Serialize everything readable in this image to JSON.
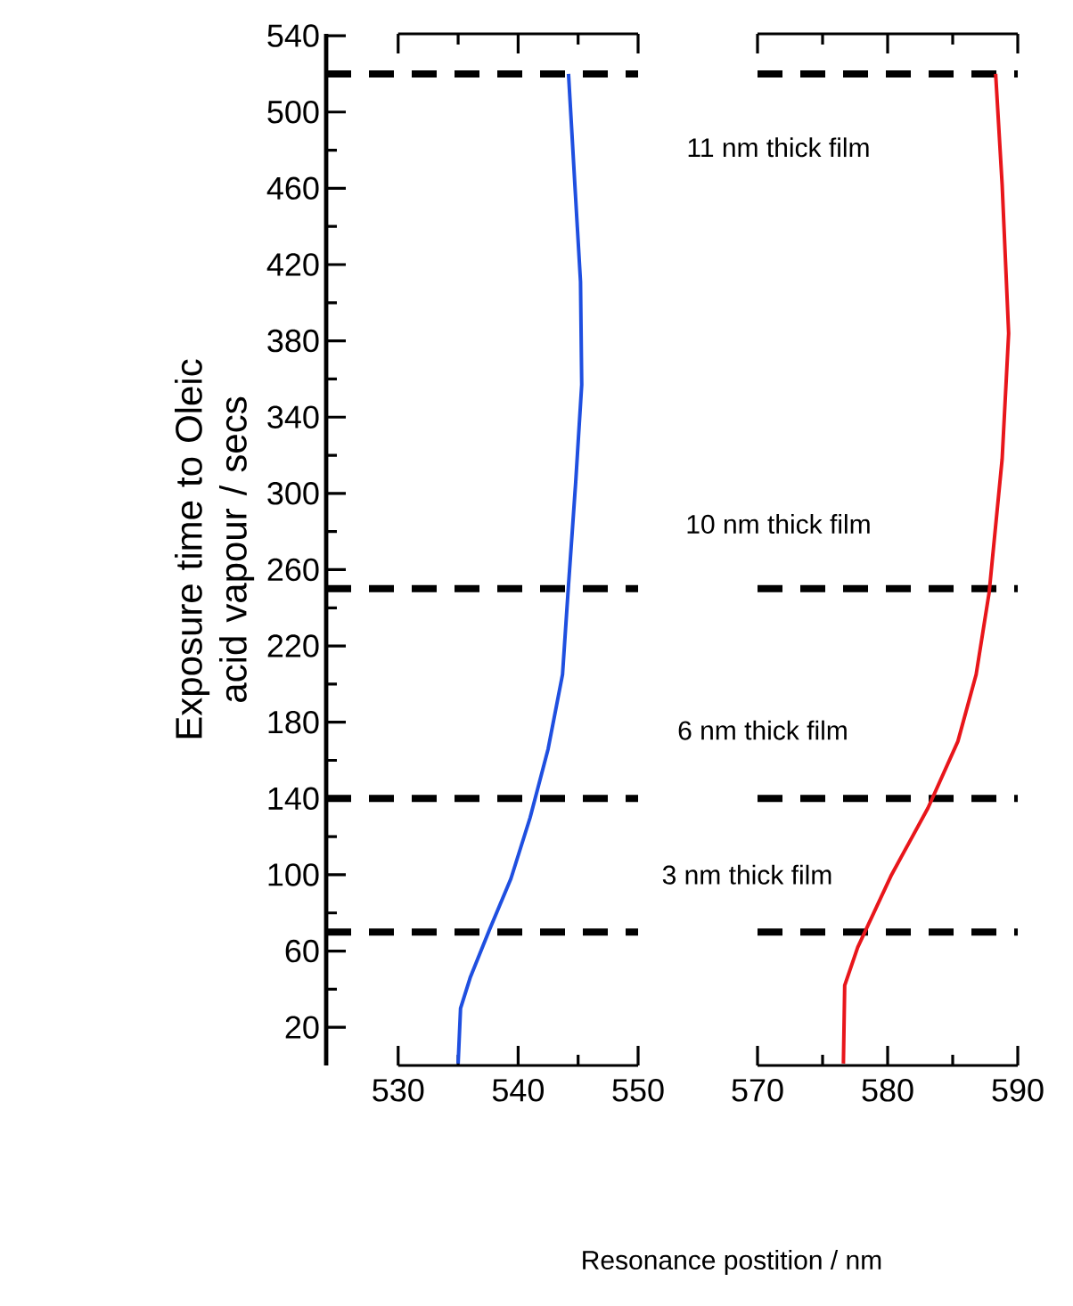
{
  "chart_data": [
    {
      "type": "line",
      "xlabel": "Resonance postition / nm",
      "ylabel": "Exposure time to Oleic acid vapour / secs",
      "xlim": [
        524,
        550
      ],
      "xticks": [
        530,
        540,
        550
      ],
      "ylim": [
        0,
        541
      ],
      "yticks": [
        20,
        60,
        100,
        140,
        180,
        220,
        260,
        300,
        340,
        380,
        420,
        460,
        500,
        540
      ],
      "series": [
        {
          "color": "#1f4fe0",
          "x": [
            535.0,
            535.2,
            536.0,
            537.6,
            539.4,
            541.0,
            542.5,
            543.7,
            544.2,
            544.8,
            545.3,
            545.2,
            544.7,
            544.2
          ],
          "values": [
            1,
            30,
            46,
            71,
            98,
            130,
            166,
            205,
            252,
            306,
            357,
            411,
            465,
            520
          ]
        }
      ],
      "ref_lines": [
        {
          "axis": "y",
          "value": 520,
          "color": "#000000",
          "line_style": "dashed"
        },
        {
          "axis": "y",
          "value": 250,
          "color": "#000000",
          "line_style": "dashed"
        },
        {
          "axis": "y",
          "value": 140,
          "color": "#000000",
          "line_style": "dashed"
        },
        {
          "axis": "y",
          "value": 70,
          "color": "#000000",
          "line_style": "dashed"
        }
      ],
      "annotations": [
        "11 nm thick film",
        "10 nm thick film",
        "6 nm thick film",
        "3 nm thick film"
      ]
    },
    {
      "type": "line",
      "tick_labels": "x",
      "xlim": [
        570,
        590
      ],
      "xticks": [
        570,
        580,
        590
      ],
      "ylim": [
        0,
        541
      ],
      "series": [
        {
          "color": "#e8161b",
          "x": [
            576.6,
            576.7,
            577.7,
            580.3,
            583.1,
            585.4,
            586.8,
            587.8,
            588.8,
            589.3,
            588.8,
            588.3
          ],
          "values": [
            1,
            42,
            62,
            100,
            135,
            170,
            205,
            248,
            318,
            384,
            462,
            520
          ]
        }
      ],
      "ref_lines": [
        {
          "axis": "y",
          "value": 520,
          "color": "#000000",
          "line_style": "dashed"
        },
        {
          "axis": "y",
          "value": 250,
          "color": "#000000",
          "line_style": "dashed"
        },
        {
          "axis": "y",
          "value": 140,
          "color": "#000000",
          "line_style": "dashed"
        },
        {
          "axis": "y",
          "value": 70,
          "color": "#000000",
          "line_style": "dashed"
        }
      ]
    }
  ]
}
